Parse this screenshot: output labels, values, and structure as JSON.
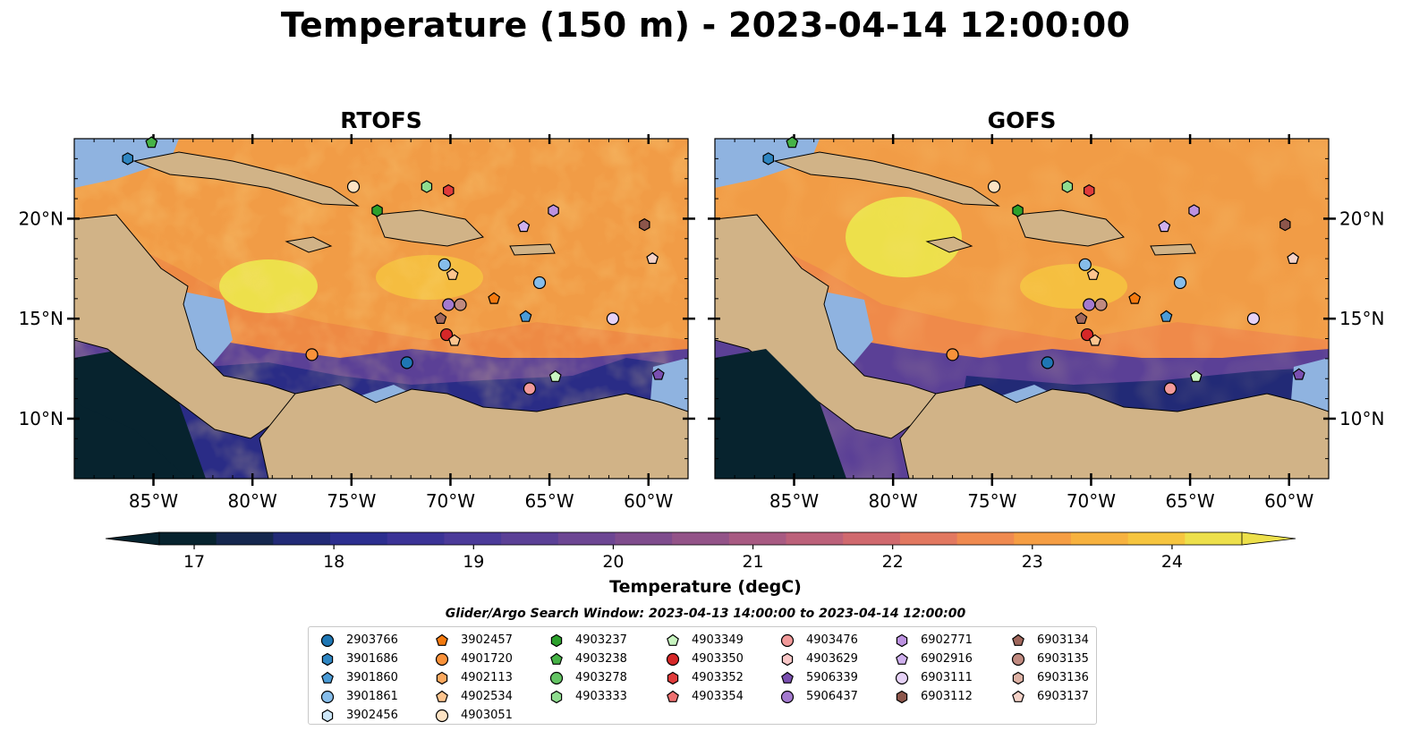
{
  "title": "Temperature (150 m) - 2023-04-14 12:00:00",
  "panels": [
    {
      "title": "RTOFS"
    },
    {
      "title": "GOFS"
    }
  ],
  "axes": {
    "lon_ticks": [
      "85°W",
      "80°W",
      "75°W",
      "70°W",
      "65°W",
      "60°W"
    ],
    "lat_ticks": [
      "20°N",
      "15°N",
      "10°N"
    ],
    "lon_range": [
      -89,
      -58
    ],
    "lat_range": [
      7,
      24
    ]
  },
  "colorbar": {
    "label": "Temperature (degC)",
    "ticks": [
      "17",
      "18",
      "19",
      "20",
      "21",
      "22",
      "23",
      "24"
    ],
    "range": [
      16.75,
      24.5
    ],
    "colors": [
      "#07232e",
      "#15274e",
      "#222a76",
      "#2c2e8f",
      "#3b3396",
      "#4b3a99",
      "#5b4096",
      "#6d4693",
      "#7f4c8d",
      "#935388",
      "#a85a82",
      "#bc617a",
      "#d0696e",
      "#e27860",
      "#ef8a50",
      "#f59e44",
      "#f7b23f",
      "#f6c53f",
      "#ede04b"
    ],
    "extend": "both"
  },
  "legend": {
    "search_window": "Glider/Argo Search Window: 2023-04-13 14:00:00 to 2023-04-14 12:00:00",
    "items": [
      {
        "id": "2903766",
        "marker": "circle",
        "color": "#1f77b4"
      },
      {
        "id": "3901686",
        "marker": "hexagon",
        "color": "#2f86c2"
      },
      {
        "id": "3901860",
        "marker": "pentagon",
        "color": "#4a9bd6"
      },
      {
        "id": "3901861",
        "marker": "circle",
        "color": "#86bdea"
      },
      {
        "id": "3902456",
        "marker": "hexagon",
        "color": "#cde6f7"
      },
      {
        "id": "3902457",
        "marker": "pentagon",
        "color": "#f47a0f"
      },
      {
        "id": "4901720",
        "marker": "circle",
        "color": "#f9923a"
      },
      {
        "id": "4902113",
        "marker": "hexagon",
        "color": "#fba85e"
      },
      {
        "id": "4902534",
        "marker": "pentagon",
        "color": "#fdc48e"
      },
      {
        "id": "4903051",
        "marker": "circle",
        "color": "#fde3c4"
      },
      {
        "id": "4903237",
        "marker": "hexagon",
        "color": "#2ca02c"
      },
      {
        "id": "4903238",
        "marker": "pentagon",
        "color": "#46b346"
      },
      {
        "id": "4903278",
        "marker": "circle",
        "color": "#63c463"
      },
      {
        "id": "4903333",
        "marker": "hexagon",
        "color": "#8fdc8f"
      },
      {
        "id": "4903349",
        "marker": "pentagon",
        "color": "#c8f5c0"
      },
      {
        "id": "4903350",
        "marker": "circle",
        "color": "#d62728"
      },
      {
        "id": "4903352",
        "marker": "hexagon",
        "color": "#e03b3b"
      },
      {
        "id": "4903354",
        "marker": "pentagon",
        "color": "#ee7070"
      },
      {
        "id": "4903476",
        "marker": "circle",
        "color": "#f29a9a"
      },
      {
        "id": "4903629",
        "marker": "hexagon",
        "color": "#f9c7c7"
      },
      {
        "id": "5906339",
        "marker": "pentagon",
        "color": "#7a4fb0"
      },
      {
        "id": "5906437",
        "marker": "circle",
        "color": "#a47acf"
      },
      {
        "id": "6902771",
        "marker": "hexagon",
        "color": "#bc92e0"
      },
      {
        "id": "6902916",
        "marker": "pentagon",
        "color": "#cfb0ee"
      },
      {
        "id": "6903111",
        "marker": "circle",
        "color": "#e6d2f7"
      },
      {
        "id": "6903112",
        "marker": "hexagon",
        "color": "#8c564b"
      },
      {
        "id": "6903134",
        "marker": "pentagon",
        "color": "#a0675c"
      },
      {
        "id": "6903135",
        "marker": "circle",
        "color": "#c08a80"
      },
      {
        "id": "6903136",
        "marker": "hexagon",
        "color": "#ddb1a4"
      },
      {
        "id": "6903137",
        "marker": "pentagon",
        "color": "#f4d2c8"
      }
    ]
  },
  "floats": [
    {
      "id": "3901686",
      "lon": -86.3,
      "lat": 23.0
    },
    {
      "id": "4903238",
      "lon": -85.1,
      "lat": 23.8
    },
    {
      "id": "4903051",
      "lon": -74.9,
      "lat": 21.6
    },
    {
      "id": "4903352",
      "lon": -70.1,
      "lat": 21.4
    },
    {
      "id": "4903333",
      "lon": -71.2,
      "lat": 21.6
    },
    {
      "id": "4903237",
      "lon": -73.7,
      "lat": 20.4
    },
    {
      "id": "6902916",
      "lon": -66.3,
      "lat": 19.6
    },
    {
      "id": "6902771",
      "lon": -64.8,
      "lat": 20.4
    },
    {
      "id": "6903112",
      "lon": -60.2,
      "lat": 19.7
    },
    {
      "id": "6903137",
      "lon": -59.8,
      "lat": 18.0
    },
    {
      "id": "3901861",
      "lon": -70.3,
      "lat": 17.7
    },
    {
      "id": "4902534",
      "lon": -69.9,
      "lat": 17.2
    },
    {
      "id": "3901861",
      "lon": -65.5,
      "lat": 16.8
    },
    {
      "id": "3902457",
      "lon": -67.8,
      "lat": 16.0
    },
    {
      "id": "5906437",
      "lon": -70.1,
      "lat": 15.7
    },
    {
      "id": "6903135",
      "lon": -69.5,
      "lat": 15.7
    },
    {
      "id": "3901860",
      "lon": -66.2,
      "lat": 15.1
    },
    {
      "id": "6903134",
      "lon": -70.5,
      "lat": 15.0
    },
    {
      "id": "6903111",
      "lon": -61.8,
      "lat": 15.0
    },
    {
      "id": "4903350",
      "lon": -70.2,
      "lat": 14.2
    },
    {
      "id": "4902534",
      "lon": -69.8,
      "lat": 13.9
    },
    {
      "id": "4901720",
      "lon": -77.0,
      "lat": 13.2
    },
    {
      "id": "2903766",
      "lon": -72.2,
      "lat": 12.8
    },
    {
      "id": "4903349",
      "lon": -64.7,
      "lat": 12.1
    },
    {
      "id": "5906339",
      "lon": -59.5,
      "lat": 12.2
    },
    {
      "id": "4903476",
      "lon": -66.0,
      "lat": 11.5
    }
  ]
}
